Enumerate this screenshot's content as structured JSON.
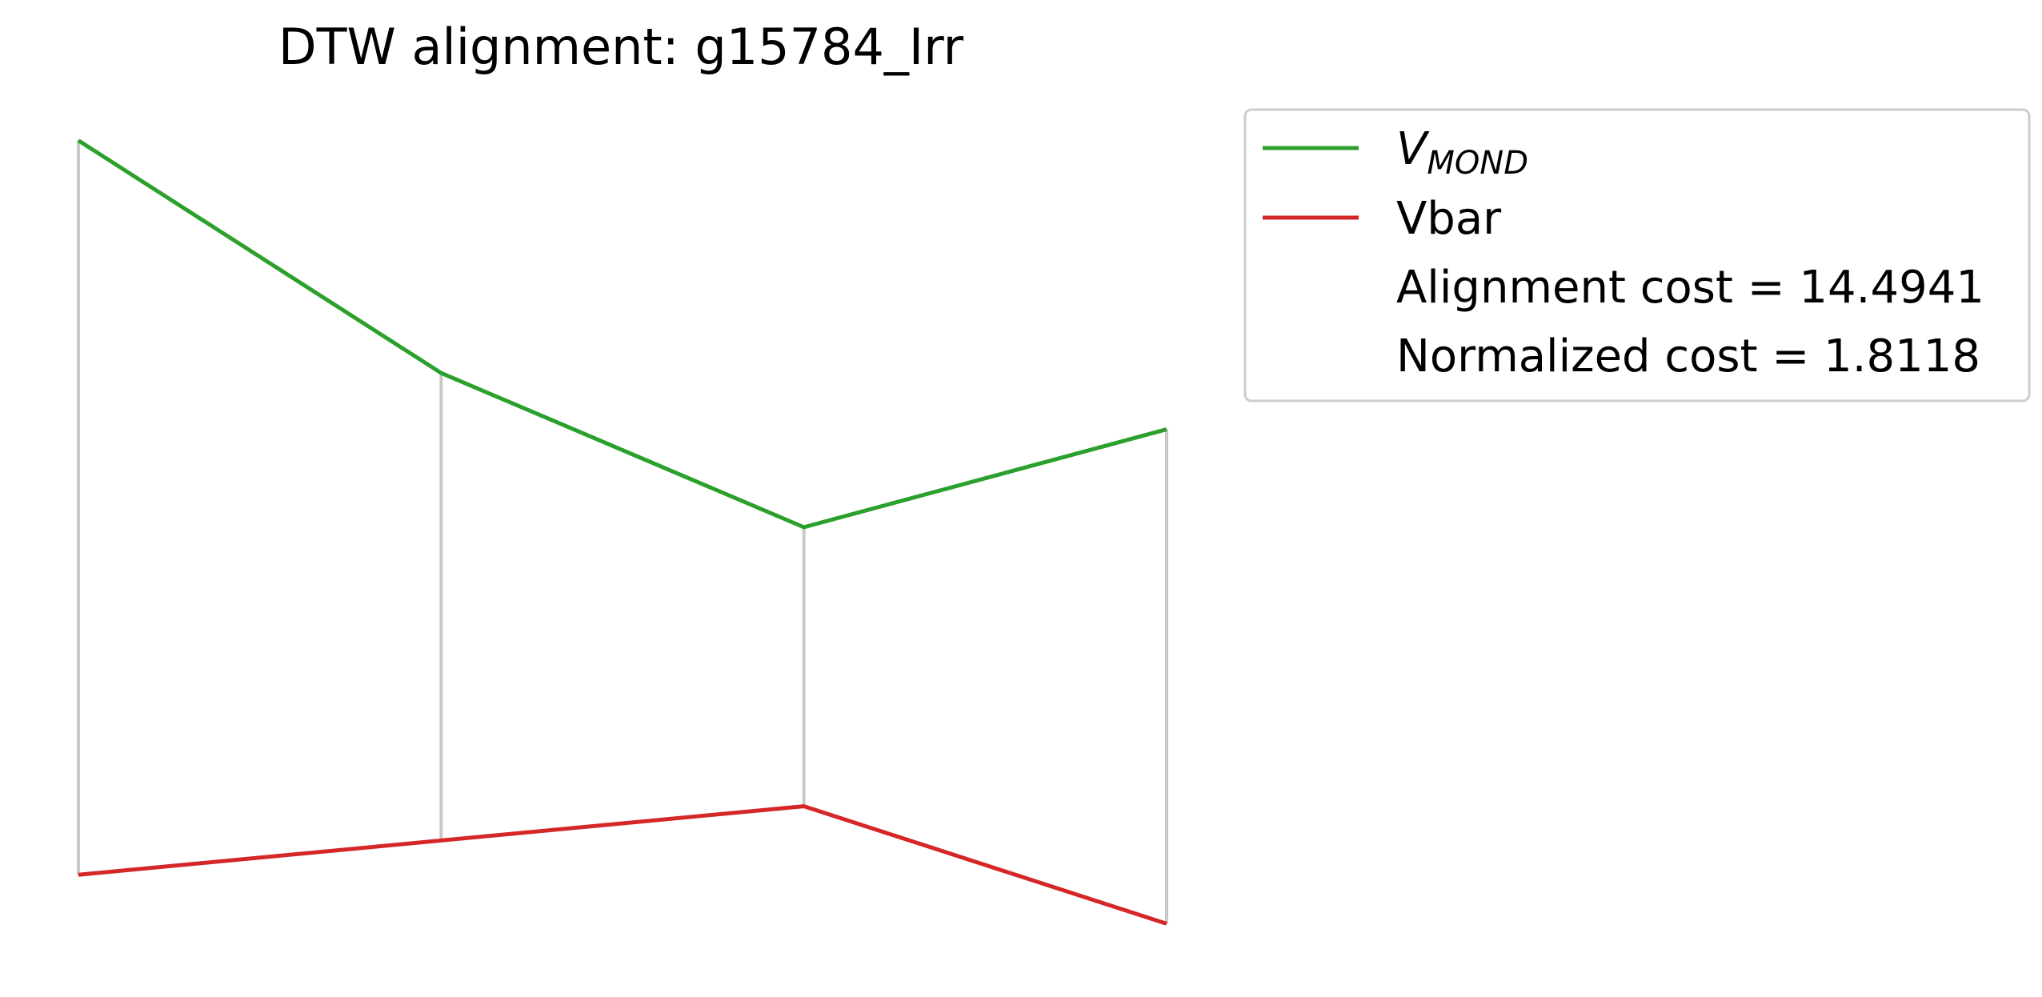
{
  "chart_data": {
    "type": "line",
    "title": "DTW alignment: g15784_Irr",
    "x": [
      0,
      1,
      2,
      3
    ],
    "series": [
      {
        "name": "V_MOND",
        "label_main": "V",
        "label_sub": "MOND",
        "color": "#2ca02c",
        "values": [
          5.2,
          4.25,
          3.62,
          4.02
        ]
      },
      {
        "name": "Vbar",
        "label": "Vbar",
        "color": "#d62728",
        "values": [
          2.2,
          2.34,
          2.48,
          2.0
        ]
      }
    ],
    "alignment": [
      [
        0,
        0
      ],
      [
        1,
        1
      ],
      [
        2,
        2
      ],
      [
        3,
        3
      ]
    ],
    "alignment_color": "#c8c8c8",
    "ylim": [
      1.9,
      5.3
    ],
    "legend_position": "upper-right",
    "stats": [
      {
        "label": "Alignment cost = 14.4941"
      },
      {
        "label": "Normalized cost = 1.8118"
      }
    ],
    "axes_visible": false
  }
}
